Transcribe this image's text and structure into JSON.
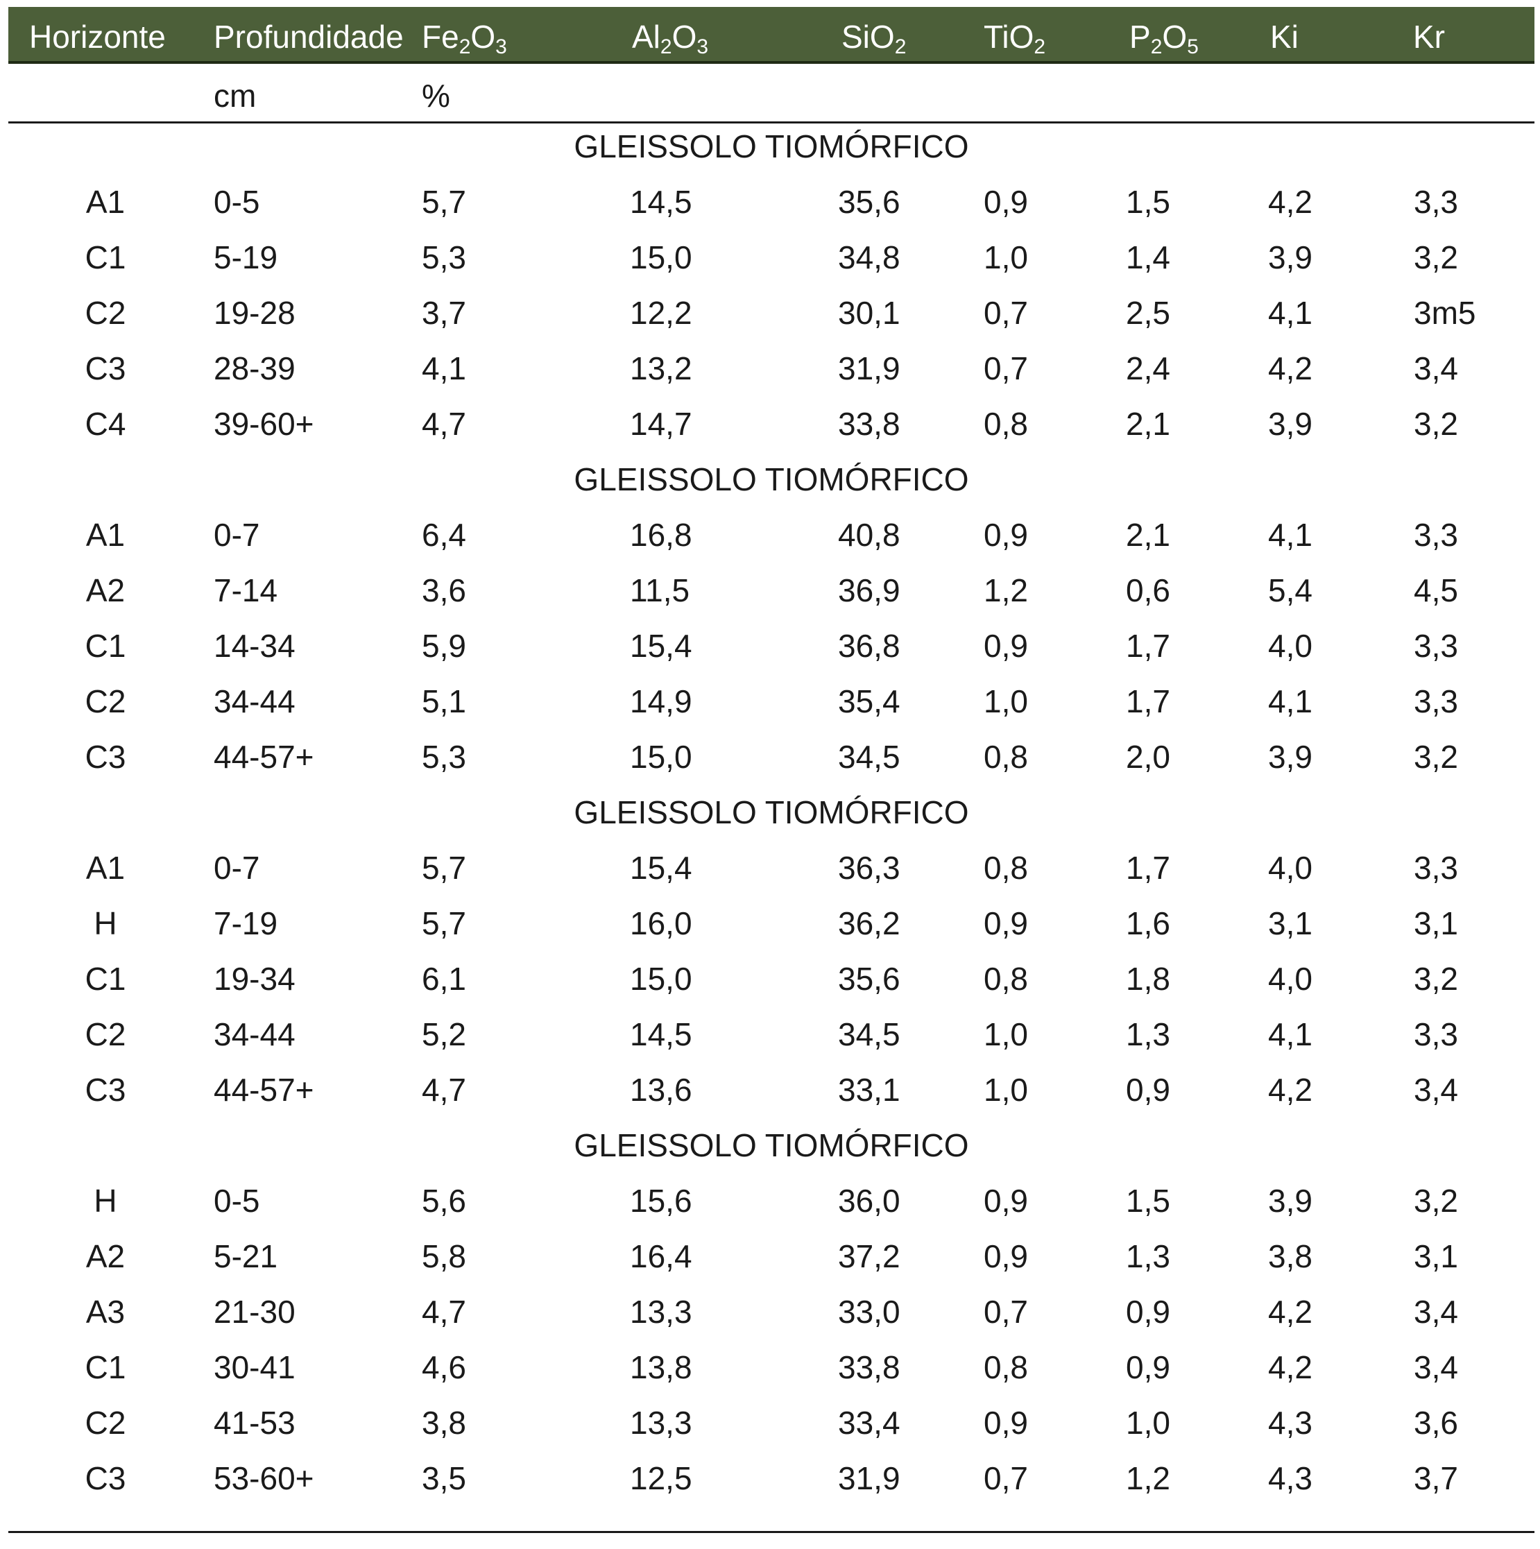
{
  "header": {
    "horizonte": "Horizonte",
    "profundidade": "Profundidade",
    "fe2o3": {
      "a": "Fe",
      "s1": "2",
      "b": "O",
      "s2": "3"
    },
    "al2o3": {
      "a": "Al",
      "s1": "2",
      "b": "O",
      "s2": "3"
    },
    "sio2": {
      "a": "SiO",
      "s1": "2"
    },
    "tio2": {
      "a": "TiO",
      "s1": "2"
    },
    "p2o5": {
      "a": "P",
      "s1": "2",
      "b": "O",
      "s2": "5"
    },
    "ki": "Ki",
    "kr": "Kr"
  },
  "units": {
    "depth": "cm",
    "percent": "%"
  },
  "sections": [
    {
      "title": "GLEISSOLO TIOMÓRFICO",
      "rows": [
        [
          "A1",
          "0-5",
          "5,7",
          "14,5",
          "35,6",
          "0,9",
          "1,5",
          "4,2",
          "3,3"
        ],
        [
          "C1",
          "5-19",
          "5,3",
          "15,0",
          "34,8",
          "1,0",
          "1,4",
          "3,9",
          "3,2"
        ],
        [
          "C2",
          "19-28",
          "3,7",
          "12,2",
          "30,1",
          "0,7",
          "2,5",
          "4,1",
          "3m5"
        ],
        [
          "C3",
          "28-39",
          "4,1",
          "13,2",
          "31,9",
          "0,7",
          "2,4",
          "4,2",
          "3,4"
        ],
        [
          "C4",
          "39-60+",
          "4,7",
          "14,7",
          "33,8",
          "0,8",
          "2,1",
          "3,9",
          "3,2"
        ]
      ]
    },
    {
      "title": "GLEISSOLO TIOMÓRFICO",
      "rows": [
        [
          "A1",
          "0-7",
          "6,4",
          "16,8",
          "40,8",
          "0,9",
          "2,1",
          "4,1",
          "3,3"
        ],
        [
          "A2",
          "7-14",
          "3,6",
          "11,5",
          "36,9",
          "1,2",
          "0,6",
          "5,4",
          "4,5"
        ],
        [
          "C1",
          "14-34",
          "5,9",
          "15,4",
          "36,8",
          "0,9",
          "1,7",
          "4,0",
          "3,3"
        ],
        [
          "C2",
          "34-44",
          "5,1",
          "14,9",
          "35,4",
          "1,0",
          "1,7",
          "4,1",
          "3,3"
        ],
        [
          "C3",
          "44-57+",
          "5,3",
          "15,0",
          "34,5",
          "0,8",
          "2,0",
          "3,9",
          "3,2"
        ]
      ]
    },
    {
      "title": "GLEISSOLO TIOMÓRFICO",
      "rows": [
        [
          "A1",
          "0-7",
          "5,7",
          "15,4",
          "36,3",
          "0,8",
          "1,7",
          "4,0",
          "3,3"
        ],
        [
          "H",
          "7-19",
          "5,7",
          "16,0",
          "36,2",
          "0,9",
          "1,6",
          "3,1",
          "3,1"
        ],
        [
          "C1",
          "19-34",
          "6,1",
          "15,0",
          "35,6",
          "0,8",
          "1,8",
          "4,0",
          "3,2"
        ],
        [
          "C2",
          "34-44",
          "5,2",
          "14,5",
          "34,5",
          "1,0",
          "1,3",
          "4,1",
          "3,3"
        ],
        [
          "C3",
          "44-57+",
          "4,7",
          "13,6",
          "33,1",
          "1,0",
          "0,9",
          "4,2",
          "3,4"
        ]
      ]
    },
    {
      "title": "GLEISSOLO TIOMÓRFICO",
      "rows": [
        [
          "H",
          "0-5",
          "5,6",
          "15,6",
          "36,0",
          "0,9",
          "1,5",
          "3,9",
          "3,2"
        ],
        [
          "A2",
          "5-21",
          "5,8",
          "16,4",
          "37,2",
          "0,9",
          "1,3",
          "3,8",
          "3,1"
        ],
        [
          "A3",
          "21-30",
          "4,7",
          "13,3",
          "33,0",
          "0,7",
          "0,9",
          "4,2",
          "3,4"
        ],
        [
          "C1",
          "30-41",
          "4,6",
          "13,8",
          "33,8",
          "0,8",
          "0,9",
          "4,2",
          "3,4"
        ],
        [
          "C2",
          "41-53",
          "3,8",
          "13,3",
          "33,4",
          "0,9",
          "1,0",
          "4,3",
          "3,6"
        ],
        [
          "C3",
          "53-60+",
          "3,5",
          "12,5",
          "31,9",
          "0,7",
          "1,2",
          "4,3",
          "3,7"
        ]
      ]
    }
  ],
  "colors": {
    "header_bg": "#4c5f39",
    "header_text": "#ffffff",
    "text": "#1a1a1a"
  }
}
